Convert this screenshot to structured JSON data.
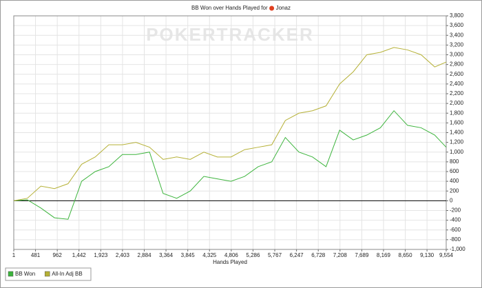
{
  "chart_data": {
    "type": "line",
    "title": "BB Won over Hands Played for",
    "player": "Jonaz",
    "watermark": "POKERTRACKER",
    "x_label": "Hands Played",
    "x": [
      1,
      300,
      600,
      900,
      1200,
      1500,
      1800,
      2100,
      2400,
      2700,
      3000,
      3300,
      3600,
      3900,
      4200,
      4500,
      4800,
      5100,
      5400,
      5700,
      6000,
      6300,
      6600,
      6900,
      7200,
      7500,
      7800,
      8100,
      8400,
      8700,
      9000,
      9300,
      9554
    ],
    "series": [
      {
        "name": "BB Won",
        "color": "#3cb43c",
        "values": [
          0,
          20,
          -150,
          -350,
          -380,
          400,
          600,
          700,
          950,
          950,
          1000,
          150,
          50,
          200,
          500,
          450,
          400,
          500,
          700,
          800,
          1300,
          1000,
          900,
          700,
          1450,
          1250,
          1350,
          1500,
          1850,
          1550,
          1500,
          1350,
          1100
        ]
      },
      {
        "name": "All-In Adj BB",
        "color": "#b5b035",
        "values": [
          0,
          50,
          300,
          250,
          350,
          750,
          900,
          1150,
          1150,
          1200,
          1100,
          850,
          900,
          850,
          1000,
          900,
          900,
          1050,
          1100,
          1150,
          1650,
          1800,
          1850,
          1950,
          2400,
          2650,
          3000,
          3050,
          3150,
          3100,
          3000,
          2750,
          2850
        ]
      }
    ],
    "xlim": [
      1,
      9554
    ],
    "xticks": [
      1,
      481,
      962,
      {
        "value": 1442,
        "label": "1,442"
      },
      {
        "value": 1923,
        "label": "1,923"
      },
      {
        "value": 2403,
        "label": "2,403"
      },
      {
        "value": 2884,
        "label": "2,884"
      },
      {
        "value": 3364,
        "label": "3,364"
      },
      {
        "value": 3845,
        "label": "3,845"
      },
      {
        "value": 4325,
        "label": "4,325"
      },
      {
        "value": 4806,
        "label": "4,806"
      },
      {
        "value": 5286,
        "label": "5,286"
      },
      {
        "value": 5767,
        "label": "5,767"
      },
      {
        "value": 6247,
        "label": "6,247"
      },
      {
        "value": 6728,
        "label": "6,728"
      },
      {
        "value": 7208,
        "label": "7,208"
      },
      {
        "value": 7689,
        "label": "7,689"
      },
      {
        "value": 8169,
        "label": "8,169"
      },
      {
        "value": 8650,
        "label": "8,650"
      },
      {
        "value": 9130,
        "label": "9,130"
      },
      {
        "value": 9554,
        "label": "9,554"
      }
    ],
    "ylim": [
      -1000,
      3800
    ],
    "yticks": [
      {
        "value": -1000,
        "label": "-1,000"
      },
      -800,
      -600,
      -400,
      -200,
      0,
      200,
      400,
      600,
      800,
      {
        "value": 1000,
        "label": "1,000"
      },
      {
        "value": 1200,
        "label": "1,200"
      },
      {
        "value": 1400,
        "label": "1,400"
      },
      {
        "value": 1600,
        "label": "1,600"
      },
      {
        "value": 1800,
        "label": "1,800"
      },
      {
        "value": 2000,
        "label": "2,000"
      },
      {
        "value": 2200,
        "label": "2,200"
      },
      {
        "value": 2400,
        "label": "2,400"
      },
      {
        "value": 2600,
        "label": "2,600"
      },
      {
        "value": 2800,
        "label": "2,800"
      },
      {
        "value": 3000,
        "label": "3,000"
      },
      {
        "value": 3200,
        "label": "3,200"
      },
      {
        "value": 3400,
        "label": "3,400"
      },
      {
        "value": 3600,
        "label": "3,600"
      },
      {
        "value": 3800,
        "label": "3,800"
      }
    ],
    "grid": true
  }
}
